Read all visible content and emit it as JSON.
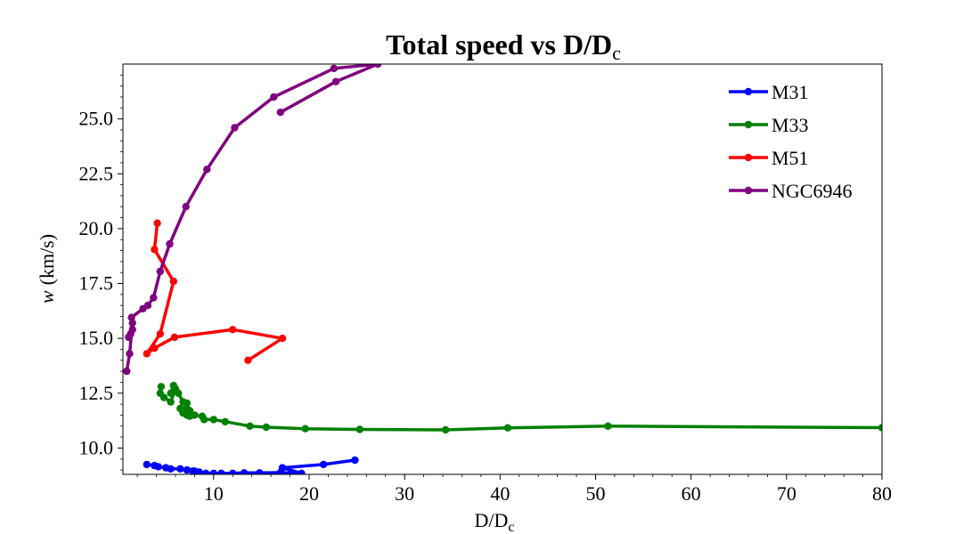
{
  "chart_data": {
    "type": "line",
    "title": "Total speed vs D/D",
    "title_sub": "c",
    "xlabel": "D/D",
    "xlabel_sub": "c",
    "ylabel_var": "w",
    "ylabel_unit": "(km/s)",
    "xlim": [
      0.5,
      80
    ],
    "ylim": [
      8.8,
      27.5
    ],
    "x_ticks": [
      10,
      20,
      30,
      40,
      50,
      60,
      70,
      80
    ],
    "x_tick_labels": [
      "10",
      "20",
      "30",
      "40",
      "50",
      "60",
      "70",
      "80"
    ],
    "y_ticks": [
      10.0,
      12.5,
      15.0,
      17.5,
      20.0,
      22.5,
      25.0
    ],
    "y_tick_labels": [
      "10.0",
      "12.5",
      "15.0",
      "17.5",
      "20.0",
      "22.5",
      "25.0"
    ],
    "grid": false,
    "legend_position": "top-right",
    "series": [
      {
        "name": "M31",
        "color": "#0000ff",
        "points": [
          [
            3.0,
            9.25
          ],
          [
            3.8,
            9.2
          ],
          [
            4.2,
            9.15
          ],
          [
            5.0,
            9.1
          ],
          [
            5.5,
            9.05
          ],
          [
            6.5,
            9.05
          ],
          [
            7.2,
            9.0
          ],
          [
            7.8,
            8.95
          ],
          [
            8.0,
            8.95
          ],
          [
            8.5,
            8.9
          ],
          [
            9.2,
            8.85
          ],
          [
            10.0,
            8.85
          ],
          [
            10.8,
            8.85
          ],
          [
            12.0,
            8.85
          ],
          [
            13.2,
            8.87
          ],
          [
            14.8,
            8.87
          ],
          [
            17.0,
            8.88
          ],
          [
            19.2,
            8.85
          ],
          [
            17.2,
            9.1
          ],
          [
            21.5,
            9.25
          ],
          [
            24.8,
            9.45
          ]
        ]
      },
      {
        "name": "M33",
        "color": "#008000",
        "points": [
          [
            4.5,
            12.8
          ],
          [
            4.4,
            12.5
          ],
          [
            4.8,
            12.3
          ],
          [
            5.5,
            12.1
          ],
          [
            6.0,
            12.7
          ],
          [
            5.5,
            12.5
          ],
          [
            5.8,
            12.85
          ],
          [
            6.3,
            12.5
          ],
          [
            6.8,
            12.1
          ],
          [
            6.5,
            11.8
          ],
          [
            6.8,
            11.6
          ],
          [
            7.2,
            11.5
          ],
          [
            7.5,
            11.45
          ],
          [
            7.5,
            11.7
          ],
          [
            7.2,
            12.05
          ],
          [
            7.0,
            11.75
          ],
          [
            8.0,
            11.5
          ],
          [
            8.8,
            11.45
          ],
          [
            9.0,
            11.3
          ],
          [
            10.0,
            11.3
          ],
          [
            11.2,
            11.2
          ],
          [
            13.8,
            11.0
          ],
          [
            15.5,
            10.95
          ],
          [
            19.6,
            10.88
          ],
          [
            25.3,
            10.85
          ],
          [
            34.3,
            10.83
          ],
          [
            40.8,
            10.92
          ],
          [
            51.3,
            11.0
          ],
          [
            80.0,
            10.93
          ]
        ]
      },
      {
        "name": "M51",
        "color": "#ff0000",
        "points": [
          [
            4.1,
            20.25
          ],
          [
            3.8,
            19.05
          ],
          [
            5.8,
            17.6
          ],
          [
            4.4,
            15.2
          ],
          [
            3.0,
            14.3
          ],
          [
            3.8,
            14.55
          ],
          [
            5.9,
            15.05
          ],
          [
            12.0,
            15.4
          ],
          [
            17.2,
            15.0
          ],
          [
            13.6,
            14.0
          ]
        ]
      },
      {
        "name": "NGC6946",
        "color": "#800080",
        "points": [
          [
            17.0,
            25.3
          ],
          [
            22.8,
            26.7
          ],
          [
            27.2,
            27.5
          ],
          [
            22.6,
            27.3
          ],
          [
            16.3,
            26.0
          ],
          [
            12.2,
            24.6
          ],
          [
            9.3,
            22.7
          ],
          [
            7.1,
            21.0
          ],
          [
            5.4,
            19.3
          ],
          [
            4.4,
            18.05
          ],
          [
            3.7,
            16.85
          ],
          [
            3.1,
            16.5
          ],
          [
            2.6,
            16.35
          ],
          [
            1.4,
            15.95
          ],
          [
            1.5,
            15.4
          ],
          [
            1.3,
            15.2
          ],
          [
            1.1,
            15.05
          ],
          [
            1.5,
            15.7
          ],
          [
            1.2,
            14.3
          ],
          [
            0.9,
            13.5
          ]
        ]
      }
    ]
  }
}
